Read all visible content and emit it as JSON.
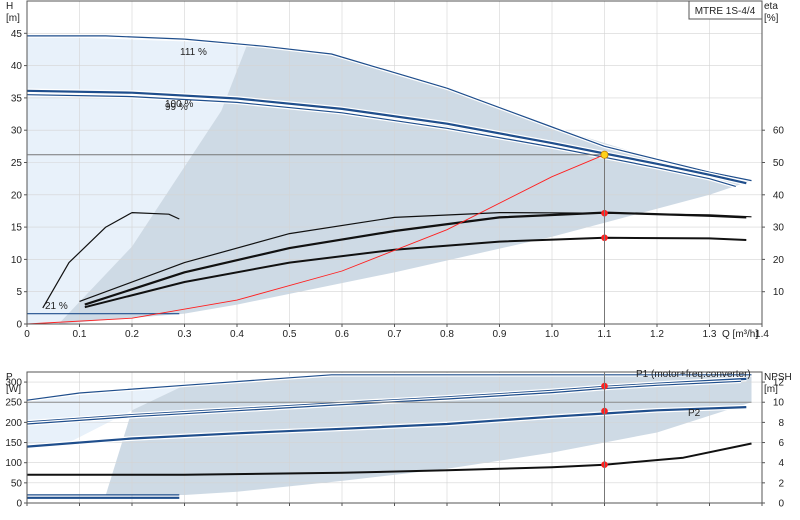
{
  "title": "MTRE 1S-4/4",
  "colors": {
    "curve_blue": "#1f4e8c",
    "curve_black": "#111111",
    "system_red": "#ff2020",
    "shade_light": "#e8f1fa",
    "shade_mid": "#c5d3e0",
    "grid": "#d4d4d4",
    "duty_point": "#ffd21a"
  },
  "chart_data": [
    {
      "type": "line",
      "xlabel": "Q [m³/h]",
      "ylabel_left": [
        "H",
        "[m]"
      ],
      "ylabel_right": [
        "eta",
        "[%]"
      ],
      "xlim": [
        0,
        1.4
      ],
      "ylim": [
        0,
        50
      ],
      "ylim_right": [
        0,
        100
      ],
      "x_ticks": [
        "0",
        "0.1",
        "0.2",
        "0.3",
        "0.4",
        "0.5",
        "0.6",
        "0.7",
        "0.8",
        "0.9",
        "1.0",
        "1.1",
        "1.2",
        "1.3",
        "1.4"
      ],
      "y_ticks": [
        "0",
        "5",
        "10",
        "15",
        "20",
        "25",
        "30",
        "35",
        "40",
        "45"
      ],
      "y_right_ticks": [
        "10",
        "20",
        "30",
        "40",
        "50",
        "60"
      ],
      "grid": true,
      "annotations": [
        "111 %",
        "100 %",
        "99 %",
        "21 %"
      ],
      "series": [
        {
          "label": "111 %",
          "axis": "left",
          "color": "blue",
          "x": [
            0,
            0.15,
            0.3,
            0.45,
            0.58,
            0.8,
            1.0,
            1.1,
            1.2,
            1.3,
            1.38
          ],
          "y": [
            44.6,
            44.6,
            44.1,
            43,
            41.8,
            36.5,
            30.5,
            27.5,
            25.5,
            23.5,
            22.2
          ]
        },
        {
          "label": "100 %",
          "axis": "left",
          "color": "blue",
          "x": [
            0,
            0.2,
            0.4,
            0.6,
            0.8,
            1.0,
            1.1,
            1.2,
            1.3,
            1.37
          ],
          "y": [
            36.1,
            35.8,
            34.9,
            33.3,
            31,
            28,
            26.4,
            24.8,
            23.1,
            21.8
          ]
        },
        {
          "label": "99 %",
          "axis": "left",
          "color": "blue",
          "x": [
            0,
            0.2,
            0.4,
            0.6,
            0.8,
            1.0,
            1.1,
            1.2,
            1.3,
            1.35
          ],
          "y": [
            35.5,
            35.2,
            34.3,
            32.7,
            30.3,
            27.4,
            25.8,
            24.2,
            22.5,
            21.3
          ]
        },
        {
          "label": "21 %",
          "axis": "left",
          "color": "blue",
          "x": [
            0,
            0.29
          ],
          "y": [
            1.6,
            1.6
          ]
        },
        {
          "label": "eta 111 %",
          "axis": "right",
          "color": "black",
          "x": [
            0.1,
            0.3,
            0.5,
            0.7,
            0.9,
            1.1,
            1.3,
            1.38
          ],
          "y": [
            7,
            19,
            28,
            33,
            34.5,
            34.3,
            33.8,
            33.2
          ]
        },
        {
          "label": "eta 100 %",
          "axis": "right",
          "color": "black",
          "x": [
            0.11,
            0.3,
            0.5,
            0.7,
            0.9,
            1.1,
            1.3,
            1.37
          ],
          "y": [
            6,
            16,
            23.5,
            28.8,
            33,
            34.5,
            33.5,
            33
          ]
        },
        {
          "label": "eta 99 %",
          "axis": "right",
          "color": "black",
          "x": [
            0.11,
            0.3,
            0.5,
            0.7,
            0.9,
            1.1,
            1.3,
            1.37
          ],
          "y": [
            5.2,
            13,
            19,
            23,
            25.5,
            26.7,
            26.5,
            26
          ]
        },
        {
          "label": "eta 21 %",
          "axis": "right",
          "color": "black",
          "x": [
            0.03,
            0.08,
            0.15,
            0.2,
            0.27,
            0.29
          ],
          "y": [
            5,
            19,
            30,
            34.5,
            34,
            32.5
          ]
        },
        {
          "label": "system curve",
          "axis": "left",
          "color": "red",
          "x": [
            0,
            0.2,
            0.4,
            0.6,
            0.8,
            1.0,
            1.1
          ],
          "y": [
            0,
            0.9,
            3.7,
            8.2,
            14.6,
            22.8,
            26.2
          ]
        }
      ],
      "duty_point": {
        "x": 1.1,
        "y": 26.2
      },
      "markers": [
        {
          "x": 1.1,
          "y": 34.3,
          "axis": "right"
        },
        {
          "x": 1.1,
          "y": 26.7,
          "axis": "right"
        }
      ]
    },
    {
      "type": "line",
      "xlim": [
        0,
        1.4
      ],
      "ylim": [
        0,
        325
      ],
      "ylim_right": [
        0,
        13
      ],
      "ylabel_left": [
        "P",
        "[W]"
      ],
      "ylabel_right": [
        "NPSH",
        "[m]"
      ],
      "y_ticks": [
        "0",
        "50",
        "100",
        "150",
        "200",
        "250",
        "300"
      ],
      "y_right_ticks": [
        "0",
        "2",
        "4",
        "6",
        "8",
        "10",
        "12"
      ],
      "annotations": [
        "P1 (motor+freq.converter)",
        "P2"
      ],
      "grid": true,
      "series": [
        {
          "label": "P1 111 %",
          "axis": "left",
          "color": "blue",
          "x": [
            0,
            0.1,
            0.3,
            0.58,
            1.0,
            1.1,
            1.38
          ],
          "y": [
            255,
            273,
            292,
            318,
            318,
            318,
            318
          ]
        },
        {
          "label": "P1 (motor+freq.converter)",
          "axis": "left",
          "color": "blue",
          "x": [
            0,
            0.2,
            0.4,
            0.6,
            0.8,
            1.0,
            1.1,
            1.2,
            1.37
          ],
          "y": [
            200,
            218,
            233,
            248,
            262,
            278,
            288,
            296,
            308
          ]
        },
        {
          "label": "P1 99 %",
          "axis": "left",
          "color": "blue",
          "x": [
            0,
            0.2,
            0.4,
            0.6,
            0.8,
            1.0,
            1.1,
            1.2,
            1.36
          ],
          "y": [
            196,
            214,
            229,
            244,
            258,
            274,
            284,
            292,
            302
          ]
        },
        {
          "label": "P2",
          "axis": "left",
          "color": "blue",
          "x": [
            0,
            0.2,
            0.4,
            0.6,
            0.8,
            1.0,
            1.1,
            1.2,
            1.37
          ],
          "y": [
            140,
            160,
            173,
            184,
            196,
            214,
            222,
            230,
            238
          ]
        },
        {
          "label": "P1 21 %",
          "axis": "left",
          "color": "blue",
          "x": [
            0,
            0.29
          ],
          "y": [
            20,
            20
          ]
        },
        {
          "label": "P2 21 %",
          "axis": "left",
          "color": "blue",
          "x": [
            0,
            0.29
          ],
          "y": [
            13,
            13
          ]
        },
        {
          "label": "NPSH",
          "axis": "right",
          "color": "black",
          "x": [
            0,
            0.3,
            0.6,
            0.8,
            1.0,
            1.1,
            1.25,
            1.38
          ],
          "y": [
            2.8,
            2.8,
            3.0,
            3.25,
            3.55,
            3.8,
            4.5,
            5.9
          ]
        }
      ],
      "markers": [
        {
          "x": 1.1,
          "y": 290
        },
        {
          "x": 1.1,
          "y": 228
        },
        {
          "x": 1.1,
          "y": 3.8,
          "axis": "right"
        }
      ]
    }
  ]
}
